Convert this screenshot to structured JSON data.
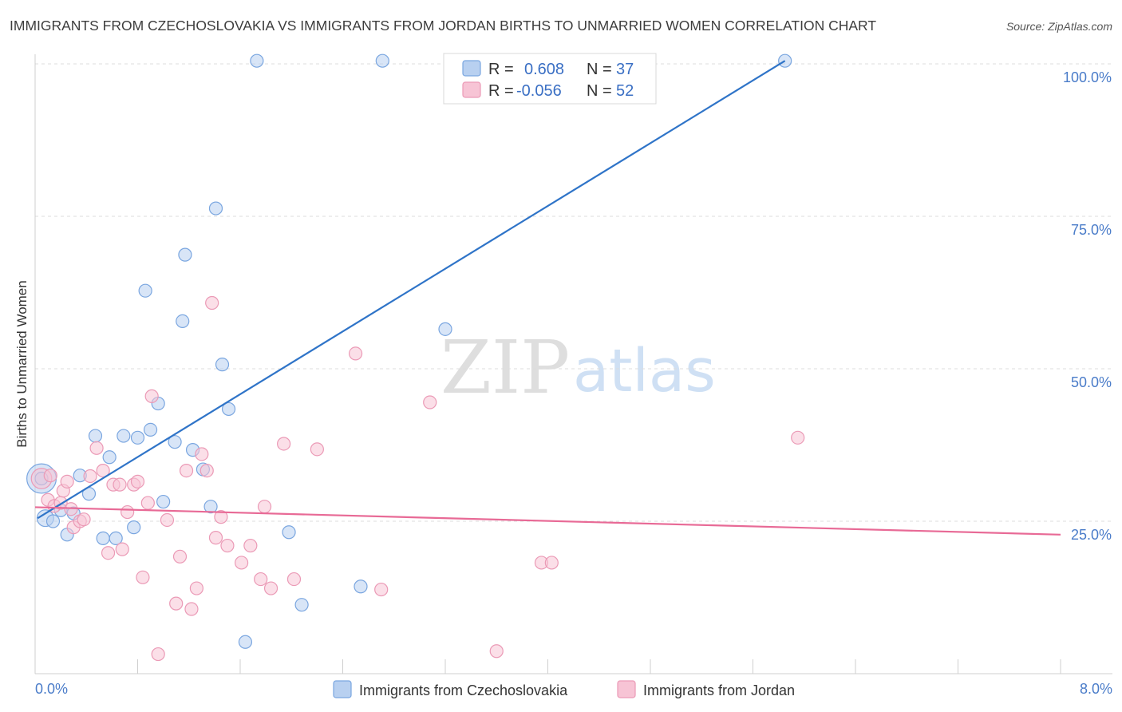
{
  "chart_data": {
    "type": "scatter",
    "title": "IMMIGRANTS FROM CZECHOSLOVAKIA VS IMMIGRANTS FROM JORDAN BIRTHS TO UNMARRIED WOMEN CORRELATION CHART",
    "source": "Source: ZipAtlas.com",
    "ylabel": "Births to Unmarried Women",
    "xlabel": "",
    "xlim": [
      0,
      8
    ],
    "ylim": [
      0,
      102
    ],
    "x_tick_labels": [
      "0.0%",
      "8.0%"
    ],
    "y_ticks": [
      {
        "value": 100,
        "label": "100.0%"
      },
      {
        "value": 75,
        "label": "75.0%"
      },
      {
        "value": 50,
        "label": "50.0%"
      },
      {
        "value": 25,
        "label": "25.0%"
      }
    ],
    "watermark": {
      "zip": "ZIP",
      "atlas": "atlas"
    },
    "legend": {
      "top": [
        {
          "r_label": "R =",
          "r_value": "0.608",
          "n_label": "N =",
          "n_value": "37"
        },
        {
          "r_label": "R =",
          "r_value": "-0.056",
          "n_label": "N =",
          "n_value": "52"
        }
      ],
      "bottom": [
        "Immigrants from Czechoslovakia",
        "Immigrants from Jordan"
      ]
    },
    "series": [
      {
        "name": "Immigrants from Czechoslovakia",
        "color": "#7aa6e0",
        "fill": "#b8d0f0",
        "trend": {
          "x1": 0.02,
          "y1": 25.5,
          "x2": 5.85,
          "y2": 100.5,
          "color": "#2f74c8"
        },
        "points": [
          [
            0.05,
            32,
            2.3
          ],
          [
            0.08,
            25.5,
            1.3
          ],
          [
            0.14,
            25,
            1
          ],
          [
            0.2,
            26.8,
            1
          ],
          [
            0.25,
            22.8,
            1
          ],
          [
            0.3,
            26.3,
            1
          ],
          [
            0.35,
            32.5,
            1
          ],
          [
            0.42,
            29.5,
            1
          ],
          [
            0.47,
            39,
            1
          ],
          [
            0.53,
            22.2,
            1
          ],
          [
            0.58,
            35.5,
            1
          ],
          [
            0.63,
            22.2,
            1
          ],
          [
            0.69,
            39,
            1
          ],
          [
            0.77,
            24,
            1
          ],
          [
            0.8,
            38.7,
            1
          ],
          [
            0.86,
            62.8,
            1
          ],
          [
            0.9,
            40,
            1
          ],
          [
            0.96,
            44.3,
            1
          ],
          [
            1.0,
            28.2,
            1
          ],
          [
            1.09,
            38,
            1
          ],
          [
            1.15,
            57.8,
            1
          ],
          [
            1.17,
            68.7,
            1
          ],
          [
            1.23,
            36.7,
            1
          ],
          [
            1.31,
            33.5,
            1
          ],
          [
            1.37,
            27.4,
            1
          ],
          [
            1.41,
            76.3,
            1
          ],
          [
            1.46,
            50.7,
            1
          ],
          [
            1.51,
            43.4,
            1
          ],
          [
            1.64,
            5.2,
            1
          ],
          [
            1.73,
            100.5,
            1
          ],
          [
            1.98,
            23.2,
            1
          ],
          [
            2.08,
            11.3,
            1
          ],
          [
            2.54,
            14.3,
            1
          ],
          [
            2.71,
            100.5,
            1
          ],
          [
            3.2,
            56.5,
            1
          ],
          [
            5.85,
            100.5,
            1
          ],
          [
            0.05,
            32,
            1
          ]
        ]
      },
      {
        "name": "Immigrants from Jordan",
        "color": "#eb9ab6",
        "fill": "#f7c4d5",
        "trend": {
          "x1": 0.0,
          "y1": 27.3,
          "x2": 8.0,
          "y2": 22.8,
          "color": "#e86a96"
        },
        "points": [
          [
            0.05,
            32,
            1.6
          ],
          [
            0.1,
            28.5,
            1
          ],
          [
            0.15,
            27.5,
            1
          ],
          [
            0.2,
            28,
            1
          ],
          [
            0.22,
            30,
            1
          ],
          [
            0.28,
            27,
            1
          ],
          [
            0.3,
            24,
            1
          ],
          [
            0.35,
            25,
            1
          ],
          [
            0.38,
            25.3,
            1
          ],
          [
            0.43,
            32.4,
            1
          ],
          [
            0.48,
            37,
            1
          ],
          [
            0.53,
            33.3,
            1
          ],
          [
            0.57,
            19.8,
            1
          ],
          [
            0.61,
            31,
            1
          ],
          [
            0.66,
            31,
            1
          ],
          [
            0.68,
            20.4,
            1
          ],
          [
            0.72,
            26.5,
            1
          ],
          [
            0.77,
            31,
            1
          ],
          [
            0.8,
            31.5,
            1
          ],
          [
            0.84,
            15.8,
            1
          ],
          [
            0.88,
            28,
            1
          ],
          [
            0.91,
            45.5,
            1
          ],
          [
            0.96,
            3.2,
            1
          ],
          [
            1.03,
            25.2,
            1
          ],
          [
            1.1,
            11.5,
            1
          ],
          [
            1.13,
            19.2,
            1
          ],
          [
            1.18,
            33.3,
            1
          ],
          [
            1.22,
            10.6,
            1
          ],
          [
            1.26,
            14,
            1
          ],
          [
            1.3,
            36,
            1
          ],
          [
            1.34,
            33.3,
            1
          ],
          [
            1.38,
            60.8,
            1
          ],
          [
            1.41,
            22.3,
            1
          ],
          [
            1.45,
            25.7,
            1
          ],
          [
            1.5,
            21,
            1
          ],
          [
            1.61,
            18.2,
            1
          ],
          [
            1.68,
            21,
            1
          ],
          [
            1.76,
            15.5,
            1
          ],
          [
            1.79,
            27.4,
            1
          ],
          [
            1.84,
            14,
            1
          ],
          [
            1.94,
            37.7,
            1
          ],
          [
            2.02,
            15.5,
            1
          ],
          [
            2.2,
            36.8,
            1
          ],
          [
            2.5,
            52.5,
            1
          ],
          [
            2.7,
            13.8,
            1
          ],
          [
            3.08,
            44.5,
            1
          ],
          [
            3.6,
            3.7,
            1
          ],
          [
            3.95,
            18.2,
            1
          ],
          [
            4.03,
            18.2,
            1
          ],
          [
            5.95,
            38.7,
            1
          ],
          [
            0.12,
            32.5,
            1
          ],
          [
            0.25,
            31.5,
            1
          ]
        ]
      }
    ]
  }
}
